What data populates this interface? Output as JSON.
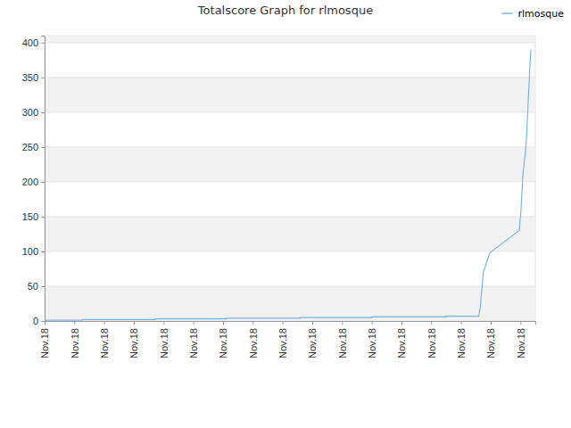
{
  "chart_data": {
    "type": "line",
    "title": "Totalscore Graph for rlmosque",
    "x": [
      0,
      1.26,
      1.26,
      3.7,
      3.7,
      6.1,
      6.1,
      8.6,
      8.6,
      11.0,
      11.0,
      13.5,
      13.5,
      14.6,
      14.65,
      14.7,
      14.75,
      14.97,
      15.96,
      16.02,
      16.08,
      16.16,
      16.2,
      16.26,
      16.3,
      16.35
    ],
    "series": [
      {
        "name": "rlmosque",
        "color": "#7cb5ec",
        "values": [
          1,
          1,
          2,
          2,
          3,
          3,
          4,
          4,
          5,
          5,
          6,
          6,
          7,
          7,
          20,
          45,
          70,
          98,
          130,
          160,
          210,
          240,
          260,
          315,
          350,
          390
        ]
      }
    ],
    "xlim": [
      0,
      16.5
    ],
    "xticks": [
      {
        "value": 0,
        "label": "Nov.18"
      },
      {
        "value": 1,
        "label": "Nov.18"
      },
      {
        "value": 2,
        "label": "Nov.18"
      },
      {
        "value": 3,
        "label": "Nov.18"
      },
      {
        "value": 4,
        "label": "Nov.18"
      },
      {
        "value": 5,
        "label": "Nov.18"
      },
      {
        "value": 6,
        "label": "Nov.18"
      },
      {
        "value": 7,
        "label": "Nov.18"
      },
      {
        "value": 8,
        "label": "Nov.18"
      },
      {
        "value": 9,
        "label": "Nov.18"
      },
      {
        "value": 10,
        "label": "Nov.18"
      },
      {
        "value": 11,
        "label": "Nov.18"
      },
      {
        "value": 12,
        "label": "Nov.18"
      },
      {
        "value": 13,
        "label": "Nov.18"
      },
      {
        "value": 14,
        "label": "Nov.18"
      },
      {
        "value": 15,
        "label": "Nov.18"
      },
      {
        "value": 16,
        "label": "Nov.18"
      }
    ],
    "ylim": [
      0,
      410
    ],
    "yticks": [
      0,
      50,
      100,
      150,
      200,
      250,
      300,
      350,
      400
    ],
    "grid": true,
    "legend": "upper right"
  }
}
